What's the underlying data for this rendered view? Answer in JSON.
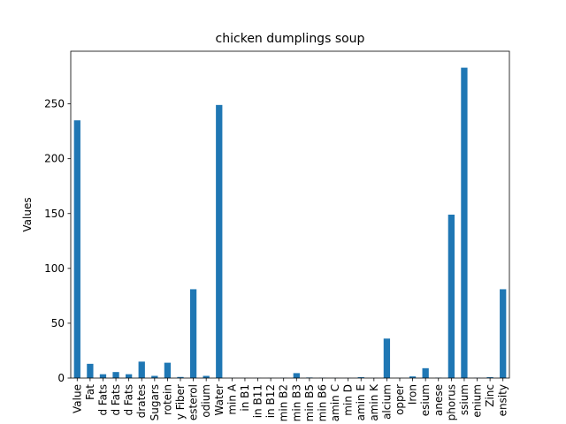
{
  "chart_data": {
    "type": "bar",
    "title": "chicken dumplings soup",
    "xlabel": "",
    "ylabel": "Values",
    "ylim": [
      0,
      298
    ],
    "yticks": [
      0,
      50,
      100,
      150,
      200,
      250
    ],
    "bar_color": "#1f77b4",
    "categories": [
      "Value",
      "Fat",
      "d Fats",
      "d Fats",
      "d Fats",
      "drates",
      "Sugars",
      "rotein",
      "y Fiber",
      "esterol",
      "odium",
      "Water",
      "min A",
      "in B1",
      "in B11",
      "in B12",
      "min B2",
      "min B3",
      "min B5",
      "min B6",
      "amin C",
      "min D",
      "amin E",
      "amin K",
      "alcium",
      "opper",
      "Iron",
      "esium",
      "anese",
      "phorus",
      "ssium",
      "enium",
      "Zinc",
      "ensity"
    ],
    "values": [
      235,
      13,
      3.5,
      5.5,
      3.5,
      15,
      2,
      14,
      1,
      81,
      2,
      249,
      0.1,
      0.1,
      0.1,
      0.1,
      0.2,
      4.5,
      0.5,
      0.2,
      0.1,
      0.1,
      0.8,
      0.1,
      36,
      0.1,
      1.5,
      9,
      0.3,
      149,
      283,
      0.2,
      0.8,
      81
    ]
  }
}
